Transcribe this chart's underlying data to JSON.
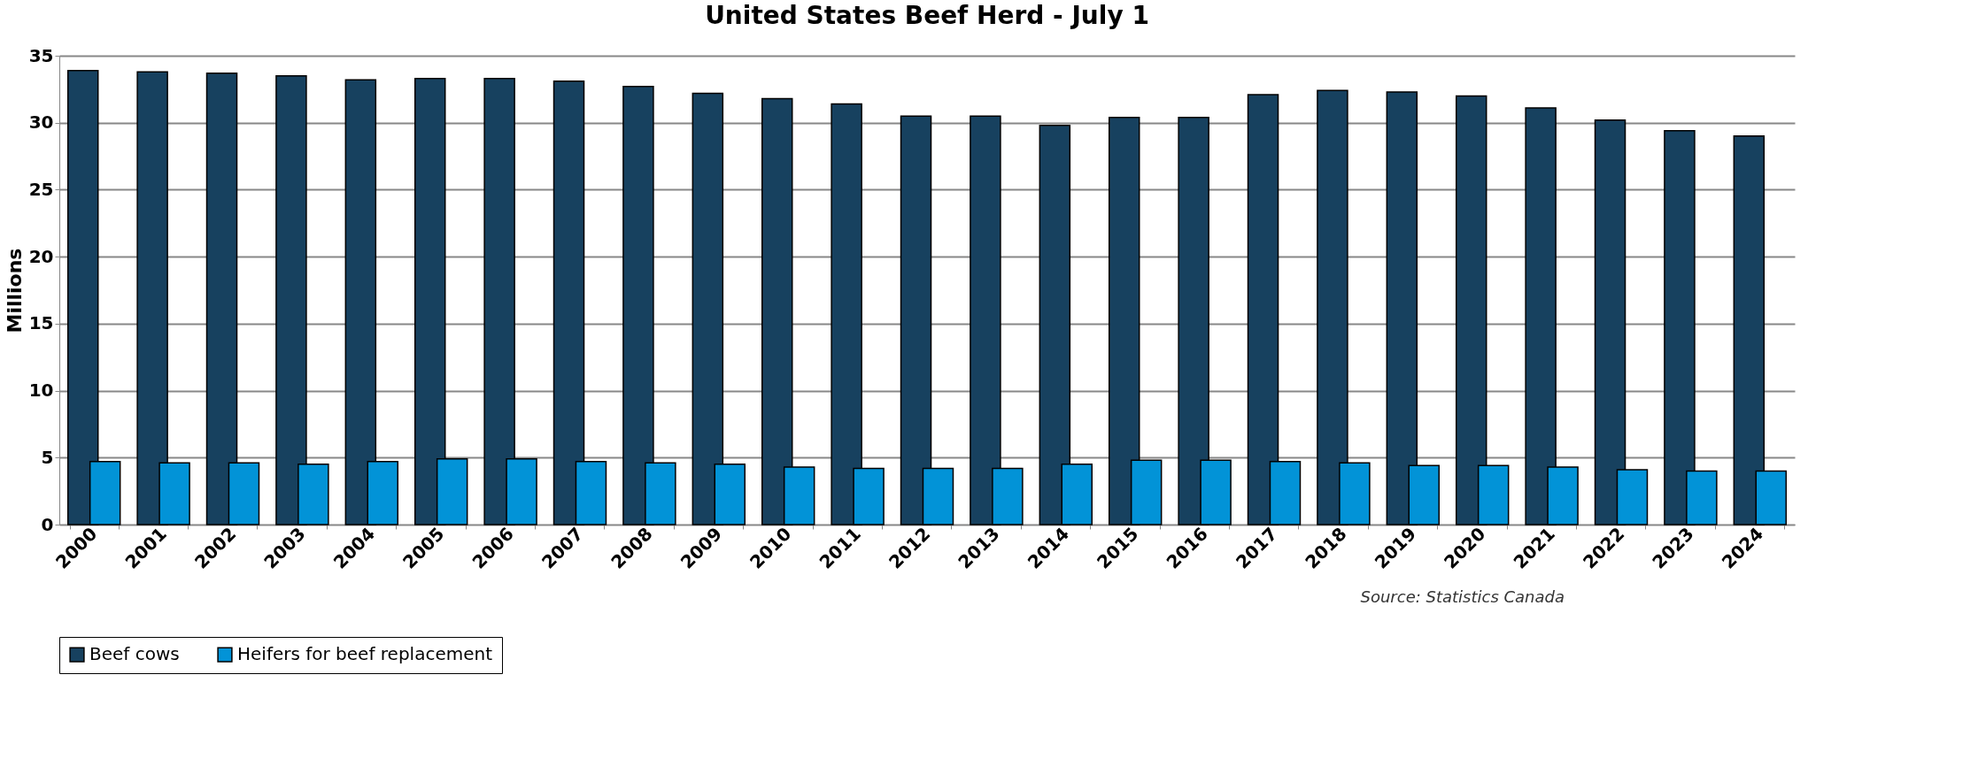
{
  "chart_data": {
    "type": "bar",
    "title": "United States Beef Herd - July 1",
    "ylabel": "Millions",
    "categories": [
      "2000",
      "2001",
      "2002",
      "2003",
      "2004",
      "2005",
      "2006",
      "2007",
      "2008",
      "2009",
      "2010",
      "2011",
      "2012",
      "2013",
      "2014",
      "2015",
      "2016",
      "2017",
      "2018",
      "2019",
      "2020",
      "2021",
      "2022",
      "2023",
      "2024"
    ],
    "series": [
      {
        "name": "Beef cows",
        "color": "#17415f",
        "values": [
          33.9,
          33.8,
          33.7,
          33.5,
          33.2,
          33.3,
          33.3,
          33.1,
          32.7,
          32.2,
          31.8,
          31.4,
          30.5,
          30.5,
          29.8,
          30.4,
          30.4,
          32.1,
          32.4,
          32.3,
          32.0,
          31.1,
          30.2,
          29.4,
          29.0
        ]
      },
      {
        "name": "Heifers for beef replacement",
        "color": "#0293d7",
        "values": [
          4.7,
          4.6,
          4.6,
          4.5,
          4.7,
          4.9,
          4.9,
          4.7,
          4.6,
          4.5,
          4.3,
          4.2,
          4.2,
          4.2,
          4.5,
          4.8,
          4.8,
          4.7,
          4.6,
          4.4,
          4.4,
          4.3,
          4.1,
          4.0,
          4.0
        ]
      }
    ],
    "ylim": [
      0,
      35
    ],
    "yticks": [
      0,
      5,
      10,
      15,
      20,
      25,
      30,
      35
    ],
    "grid": "y",
    "legend": "bottom",
    "annotations": [
      "Source: Statistics Canada"
    ]
  }
}
